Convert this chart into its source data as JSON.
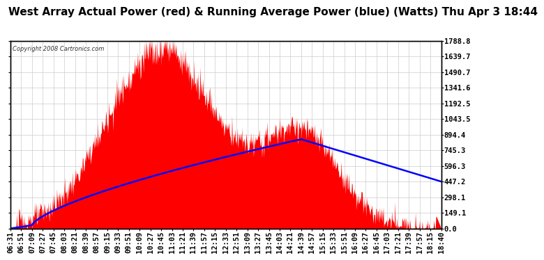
{
  "title": "West Array Actual Power (red) & Running Average Power (blue) (Watts) Thu Apr 3 18:44",
  "copyright": "Copyright 2008 Cartronics.com",
  "ylabel_right_ticks": [
    0.0,
    149.1,
    298.1,
    447.2,
    596.3,
    745.3,
    894.4,
    1043.5,
    1192.5,
    1341.6,
    1490.7,
    1639.7,
    1788.8
  ],
  "ymax": 1788.8,
  "ymin": 0.0,
  "x_tick_labels": [
    "06:31",
    "06:51",
    "07:09",
    "07:27",
    "07:45",
    "08:03",
    "08:21",
    "08:39",
    "08:57",
    "09:15",
    "09:33",
    "09:51",
    "10:09",
    "10:27",
    "10:45",
    "11:03",
    "11:21",
    "11:39",
    "11:57",
    "12:15",
    "12:33",
    "12:51",
    "13:09",
    "13:27",
    "13:45",
    "14:03",
    "14:21",
    "14:39",
    "14:57",
    "15:15",
    "15:33",
    "15:51",
    "16:09",
    "16:27",
    "16:45",
    "17:03",
    "17:21",
    "17:39",
    "17:57",
    "18:15",
    "18:40"
  ],
  "background_color": "#ffffff",
  "fill_color": "#ff0000",
  "line_color": "#0000ff",
  "grid_color": "#cccccc",
  "title_fontsize": 11,
  "tick_fontsize": 7.5
}
